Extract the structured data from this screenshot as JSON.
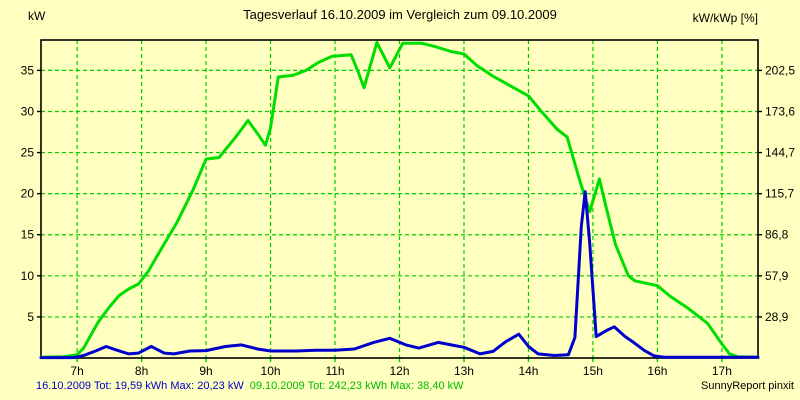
{
  "title": "Tagesverlauf 16.10.2009 im Vergleich zum 09.10.2009",
  "left_axis_label": "kW",
  "right_axis_label": "kW/kWp [%]",
  "footer": {
    "series1_stats": "16.10.2009 Tot: 19,59 kWh Max: 20,23 kW",
    "series2_stats": "09.10.2009 Tot: 242,23 kWh Max: 38,40 kW",
    "branding": "SunnyReport pinxit"
  },
  "colors": {
    "background": "#ffffc0",
    "grid": "#00cc00",
    "border": "#000000",
    "series_16_10_2009": "#0000cc",
    "series_09_10_2009": "#00dd00",
    "text": "#000000",
    "footer_blue_text": "#0000cc",
    "footer_green_text": "#00bb00"
  },
  "chart_data": {
    "type": "line",
    "title": "Tagesverlauf 16.10.2009 im Vergleich zum 09.10.2009",
    "xlabel": "",
    "ylabel_left": "kW",
    "ylabel_right": "kW/kWp [%]",
    "grid": true,
    "legend_position": "none",
    "x_axis": {
      "unit": "hour of day",
      "range_hours": [
        6.44,
        17.56
      ],
      "tick_hours": [
        7,
        8,
        9,
        10,
        11,
        12,
        13,
        14,
        15,
        16,
        17
      ],
      "tick_labels": [
        "7h",
        "8h",
        "9h",
        "10h",
        "11h",
        "12h",
        "13h",
        "14h",
        "15h",
        "16h",
        "17h"
      ]
    },
    "y_axis_left": {
      "label": "kW",
      "range": [
        0,
        38.7
      ],
      "ticks": [
        5,
        10,
        15,
        20,
        25,
        30,
        35
      ]
    },
    "y_axis_right": {
      "label": "kW/kWp [%]",
      "tick_labels": [
        "28,9",
        "57,9",
        "86,8",
        "115,7",
        "144,7",
        "173,6",
        "202,5"
      ]
    },
    "series": [
      {
        "name": "16.10.2009",
        "color": "#0000cc",
        "total": "19,59 kWh",
        "max": "20,23 kW",
        "points": [
          [
            6.44,
            0.05
          ],
          [
            6.95,
            0.05
          ],
          [
            7.1,
            0.3
          ],
          [
            7.3,
            0.9
          ],
          [
            7.45,
            1.4
          ],
          [
            7.6,
            1.0
          ],
          [
            7.8,
            0.5
          ],
          [
            7.95,
            0.6
          ],
          [
            8.15,
            1.4
          ],
          [
            8.35,
            0.6
          ],
          [
            8.5,
            0.5
          ],
          [
            8.75,
            0.85
          ],
          [
            9.0,
            0.9
          ],
          [
            9.3,
            1.4
          ],
          [
            9.55,
            1.6
          ],
          [
            9.8,
            1.1
          ],
          [
            10.0,
            0.85
          ],
          [
            10.4,
            0.85
          ],
          [
            10.7,
            0.95
          ],
          [
            11.0,
            0.95
          ],
          [
            11.3,
            1.1
          ],
          [
            11.6,
            1.9
          ],
          [
            11.85,
            2.4
          ],
          [
            12.1,
            1.6
          ],
          [
            12.3,
            1.2
          ],
          [
            12.6,
            1.9
          ],
          [
            12.8,
            1.6
          ],
          [
            13.0,
            1.3
          ],
          [
            13.25,
            0.5
          ],
          [
            13.45,
            0.8
          ],
          [
            13.65,
            2.0
          ],
          [
            13.85,
            2.9
          ],
          [
            14.0,
            1.4
          ],
          [
            14.15,
            0.5
          ],
          [
            14.4,
            0.3
          ],
          [
            14.62,
            0.4
          ],
          [
            14.72,
            2.5
          ],
          [
            14.82,
            16.0
          ],
          [
            14.88,
            20.23
          ],
          [
            14.95,
            14.0
          ],
          [
            15.05,
            2.6
          ],
          [
            15.2,
            3.3
          ],
          [
            15.33,
            3.8
          ],
          [
            15.5,
            2.6
          ],
          [
            15.63,
            1.9
          ],
          [
            15.8,
            0.9
          ],
          [
            15.95,
            0.25
          ],
          [
            16.1,
            0.1
          ],
          [
            17.56,
            0.1
          ]
        ]
      },
      {
        "name": "09.10.2009",
        "color": "#00dd00",
        "total": "242,23 kWh",
        "max": "38,40 kW",
        "points": [
          [
            6.44,
            0.1
          ],
          [
            6.78,
            0.15
          ],
          [
            7.0,
            0.4
          ],
          [
            7.1,
            1.2
          ],
          [
            7.2,
            2.6
          ],
          [
            7.33,
            4.4
          ],
          [
            7.5,
            6.2
          ],
          [
            7.65,
            7.6
          ],
          [
            7.8,
            8.4
          ],
          [
            7.95,
            9.0
          ],
          [
            8.1,
            10.5
          ],
          [
            8.3,
            13.2
          ],
          [
            8.55,
            16.5
          ],
          [
            8.8,
            20.5
          ],
          [
            9.0,
            24.2
          ],
          [
            9.2,
            24.4
          ],
          [
            9.45,
            26.8
          ],
          [
            9.65,
            28.9
          ],
          [
            9.8,
            27.3
          ],
          [
            9.92,
            25.9
          ],
          [
            10.0,
            28.0
          ],
          [
            10.12,
            34.2
          ],
          [
            10.35,
            34.4
          ],
          [
            10.55,
            35.0
          ],
          [
            10.75,
            36.0
          ],
          [
            10.95,
            36.7
          ],
          [
            11.25,
            36.9
          ],
          [
            11.35,
            35.0
          ],
          [
            11.45,
            32.9
          ],
          [
            11.65,
            38.4
          ],
          [
            11.85,
            35.3
          ],
          [
            12.05,
            38.3
          ],
          [
            12.35,
            38.3
          ],
          [
            12.55,
            37.9
          ],
          [
            12.8,
            37.3
          ],
          [
            13.0,
            37.0
          ],
          [
            13.2,
            35.6
          ],
          [
            13.45,
            34.3
          ],
          [
            13.7,
            33.2
          ],
          [
            14.0,
            31.9
          ],
          [
            14.2,
            30.0
          ],
          [
            14.45,
            27.8
          ],
          [
            14.6,
            26.9
          ],
          [
            14.8,
            21.5
          ],
          [
            14.95,
            17.8
          ],
          [
            15.1,
            21.8
          ],
          [
            15.2,
            18.5
          ],
          [
            15.35,
            13.8
          ],
          [
            15.55,
            10.0
          ],
          [
            15.65,
            9.4
          ],
          [
            16.0,
            8.8
          ],
          [
            16.2,
            7.5
          ],
          [
            16.45,
            6.2
          ],
          [
            16.65,
            5.0
          ],
          [
            16.78,
            4.2
          ],
          [
            17.0,
            1.7
          ],
          [
            17.12,
            0.5
          ],
          [
            17.25,
            0.15
          ],
          [
            17.56,
            0.1
          ]
        ]
      }
    ]
  }
}
